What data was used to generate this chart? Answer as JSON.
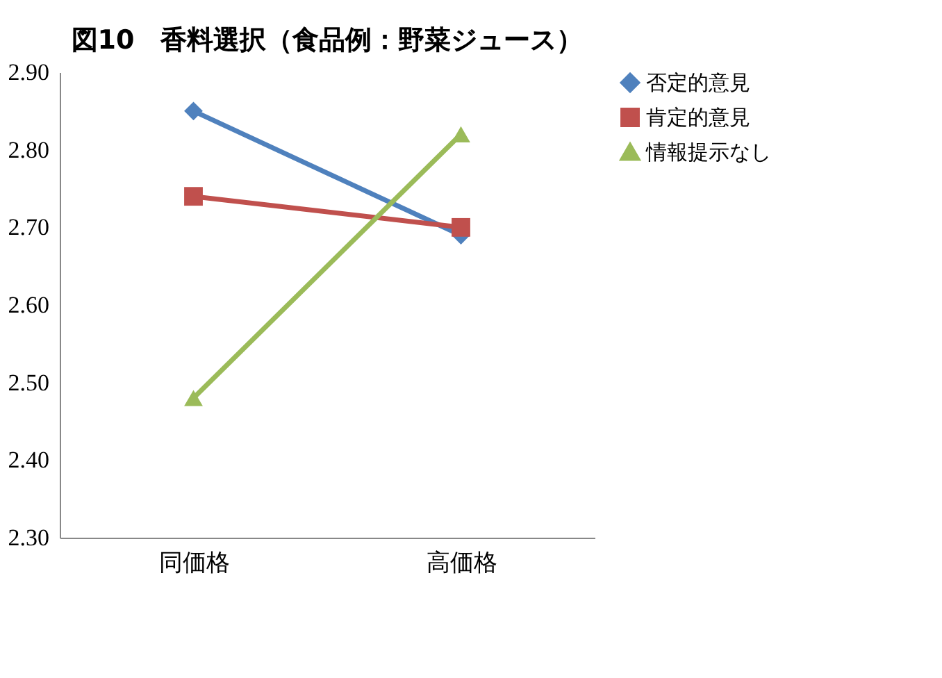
{
  "chart_data": {
    "type": "line",
    "title": "図10　香料選択（食品例：野菜ジュース）",
    "categories": [
      "同価格",
      "高価格"
    ],
    "series": [
      {
        "name": "否定的意見",
        "color": "#4f81bd",
        "marker": "diamond",
        "values": [
          2.85,
          2.69
        ]
      },
      {
        "name": "肯定的意見",
        "color": "#c0504d",
        "marker": "square",
        "values": [
          2.74,
          2.7
        ]
      },
      {
        "name": "情報提示なし",
        "color": "#9bbb59",
        "marker": "triangle",
        "values": [
          2.48,
          2.82
        ]
      }
    ],
    "ylim": [
      2.3,
      2.9
    ],
    "yticks": [
      {
        "value": 2.3,
        "label": "2.30"
      },
      {
        "value": 2.4,
        "label": "2.40"
      },
      {
        "value": 2.5,
        "label": "2.50"
      },
      {
        "value": 2.6,
        "label": "2.60"
      },
      {
        "value": 2.7,
        "label": "2.70"
      },
      {
        "value": 2.8,
        "label": "2.80"
      },
      {
        "value": 2.9,
        "label": "2.90"
      }
    ],
    "grid": false,
    "legend": "right",
    "line_style": "solid"
  }
}
